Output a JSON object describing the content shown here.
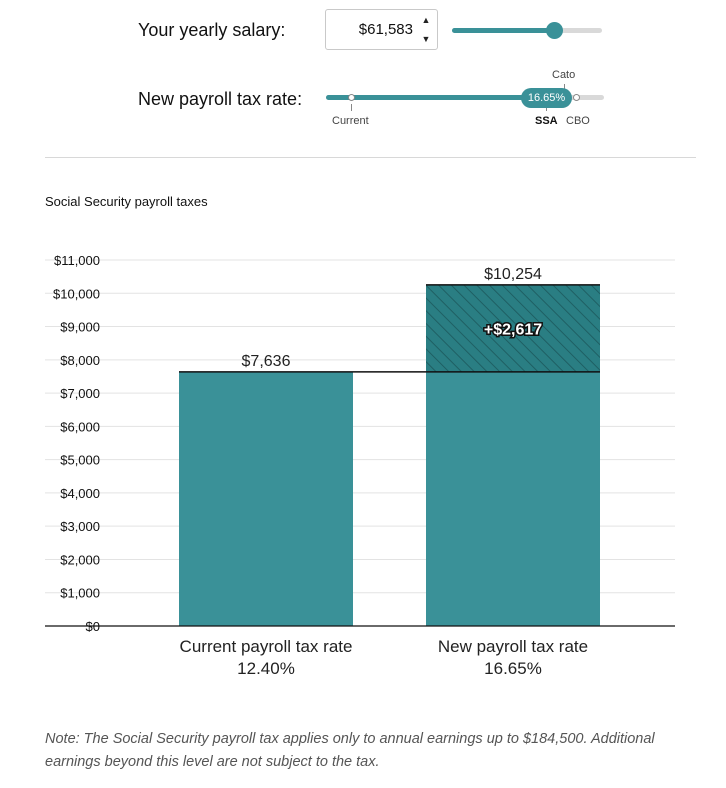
{
  "controls": {
    "salary_label": "Your yearly salary:",
    "salary_value": "$61,583",
    "salary_slider_level": 0.68,
    "spin_up": "▲",
    "spin_down": "▼",
    "rate_label": "New payroll tax rate:",
    "rate_value": "16.65%",
    "rate_options": {
      "current": "Current",
      "ssa": "SSA",
      "cbo": "CBO",
      "cato": "Cato"
    }
  },
  "chart_data": {
    "type": "bar",
    "title": "Social Security payroll taxes",
    "categories": [
      "Current payroll tax rate",
      "New payroll tax rate"
    ],
    "category_sublabels": [
      "12.40%",
      "16.65%"
    ],
    "values": [
      7636,
      10254
    ],
    "value_labels": [
      "$7,636",
      "$10,254"
    ],
    "increase": 2617,
    "increase_label": "+$2,617",
    "ylim": [
      0,
      11000
    ],
    "yticks": [
      {
        "v": 0,
        "label": "$0"
      },
      {
        "v": 1000,
        "label": "$1,000"
      },
      {
        "v": 2000,
        "label": "$2,000"
      },
      {
        "v": 3000,
        "label": "$3,000"
      },
      {
        "v": 4000,
        "label": "$4,000"
      },
      {
        "v": 5000,
        "label": "$5,000"
      },
      {
        "v": 6000,
        "label": "$6,000"
      },
      {
        "v": 7000,
        "label": "$7,000"
      },
      {
        "v": 8000,
        "label": "$8,000"
      },
      {
        "v": 9000,
        "label": "$9,000"
      },
      {
        "v": 10000,
        "label": "$10,000"
      },
      {
        "v": 11000,
        "label": "$11,000"
      }
    ],
    "grid": true,
    "colors": {
      "bar": "#3a9198",
      "increase": "#2a7e83",
      "grid": "#e3e3e3"
    }
  },
  "note": "Note: The Social Security payroll tax applies only to annual earnings up to $184,500. Additional earnings beyond this level are not subject to the tax."
}
